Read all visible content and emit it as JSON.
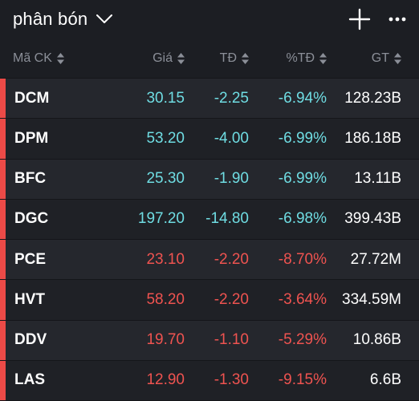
{
  "header": {
    "title": "phân bón",
    "icons": [
      "chevron-down-icon",
      "plus-icon",
      "more-icon"
    ]
  },
  "columns": {
    "symbol": "Mã CK",
    "price": "Giá",
    "change": "TĐ",
    "pct": "%TĐ",
    "value": "GT"
  },
  "colors": {
    "floor": "#6fdde3",
    "down": "#ef5350",
    "bar": "#ec4a47"
  },
  "rows": [
    {
      "symbol": "DCM",
      "price": "30.15",
      "change": "-2.25",
      "pct": "-6.94%",
      "value": "128.23B",
      "status": "floor"
    },
    {
      "symbol": "DPM",
      "price": "53.20",
      "change": "-4.00",
      "pct": "-6.99%",
      "value": "186.18B",
      "status": "floor"
    },
    {
      "symbol": "BFC",
      "price": "25.30",
      "change": "-1.90",
      "pct": "-6.99%",
      "value": "13.11B",
      "status": "floor"
    },
    {
      "symbol": "DGC",
      "price": "197.20",
      "change": "-14.80",
      "pct": "-6.98%",
      "value": "399.43B",
      "status": "floor"
    },
    {
      "symbol": "PCE",
      "price": "23.10",
      "change": "-2.20",
      "pct": "-8.70%",
      "value": "27.72M",
      "status": "down"
    },
    {
      "symbol": "HVT",
      "price": "58.20",
      "change": "-2.20",
      "pct": "-3.64%",
      "value": "334.59M",
      "status": "down"
    },
    {
      "symbol": "DDV",
      "price": "19.70",
      "change": "-1.10",
      "pct": "-5.29%",
      "value": "10.86B",
      "status": "down"
    },
    {
      "symbol": "LAS",
      "price": "12.90",
      "change": "-1.30",
      "pct": "-9.15%",
      "value": "6.6B",
      "status": "down"
    }
  ]
}
